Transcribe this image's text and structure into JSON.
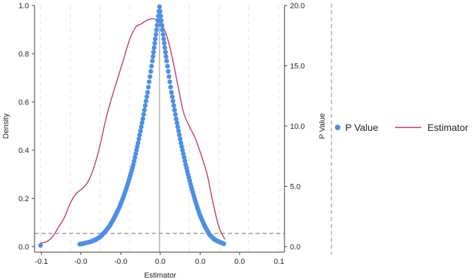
{
  "chart_data": {
    "type": "scatter",
    "title": "",
    "xlabel": "Estimator",
    "ylabel_left": "Density",
    "ylabel_right": "P Value",
    "xlim": [
      -0.105,
      0.105
    ],
    "ylim_left": [
      0,
      1.0
    ],
    "ylim_right": [
      0,
      20
    ],
    "x_ticks": [
      -0.1,
      -0.05,
      0.0,
      0.05,
      0.1
    ],
    "x_tick_labels": [
      "-0.1",
      "-0.0",
      "-0.0",
      "0.0",
      "0.0",
      "0.1"
    ],
    "x_tick_positions": [
      -0.1,
      -0.05,
      -0.0,
      0.0,
      0.05,
      0.1
    ],
    "y_left_ticks": [
      0.0,
      0.2,
      0.4,
      0.6,
      0.8,
      1.0
    ],
    "y_left_tick_labels": [
      "0.0",
      "0.2",
      "0.4",
      "0.6",
      "0.8",
      "1.0"
    ],
    "y_right_ticks": [
      0,
      5,
      10,
      15,
      20
    ],
    "y_right_tick_labels": [
      "0.0",
      "5.0",
      "10.0",
      "15.0",
      "20.0"
    ],
    "reference_lines": {
      "vertical_x": 0.0,
      "horizontal_density": 0.055
    },
    "grid": "vertical dashed",
    "legend_position": "right",
    "colors": {
      "p_value": "#4c8fe8",
      "estimator": "#c2325a",
      "reference": "#999999"
    },
    "series": [
      {
        "name": "P Value",
        "kind": "scatter",
        "axis": "left",
        "x": [
          -0.1,
          -0.067,
          -0.065,
          -0.058,
          -0.054,
          -0.05,
          -0.046,
          -0.042,
          -0.038,
          -0.034,
          -0.03,
          -0.026,
          -0.022,
          -0.018,
          -0.014,
          -0.01,
          -0.006,
          -0.003,
          0.0,
          0.003,
          0.006,
          0.01,
          0.014,
          0.018,
          0.022,
          0.026,
          0.03,
          0.034,
          0.038,
          0.042,
          0.046,
          0.05,
          0.054
        ],
        "y": [
          0.005,
          0.01,
          0.012,
          0.02,
          0.028,
          0.04,
          0.06,
          0.085,
          0.12,
          0.16,
          0.21,
          0.27,
          0.34,
          0.43,
          0.53,
          0.64,
          0.77,
          0.88,
          0.995,
          0.88,
          0.77,
          0.64,
          0.53,
          0.43,
          0.34,
          0.26,
          0.19,
          0.13,
          0.085,
          0.05,
          0.03,
          0.02,
          0.012
        ]
      },
      {
        "name": "Estimator",
        "kind": "line",
        "axis": "left",
        "x": [
          -0.1,
          -0.095,
          -0.09,
          -0.085,
          -0.08,
          -0.075,
          -0.07,
          -0.065,
          -0.06,
          -0.055,
          -0.05,
          -0.045,
          -0.04,
          -0.035,
          -0.03,
          -0.025,
          -0.02,
          -0.015,
          -0.01,
          -0.005,
          0.0,
          0.005,
          0.01,
          0.015,
          0.02,
          0.025,
          0.03,
          0.035,
          0.04,
          0.045,
          0.05,
          0.055
        ],
        "y": [
          0.015,
          0.02,
          0.04,
          0.08,
          0.12,
          0.18,
          0.22,
          0.24,
          0.27,
          0.33,
          0.42,
          0.53,
          0.62,
          0.7,
          0.78,
          0.86,
          0.91,
          0.925,
          0.94,
          0.945,
          0.93,
          0.89,
          0.8,
          0.68,
          0.56,
          0.5,
          0.45,
          0.38,
          0.3,
          0.18,
          0.08,
          0.03
        ]
      }
    ]
  }
}
